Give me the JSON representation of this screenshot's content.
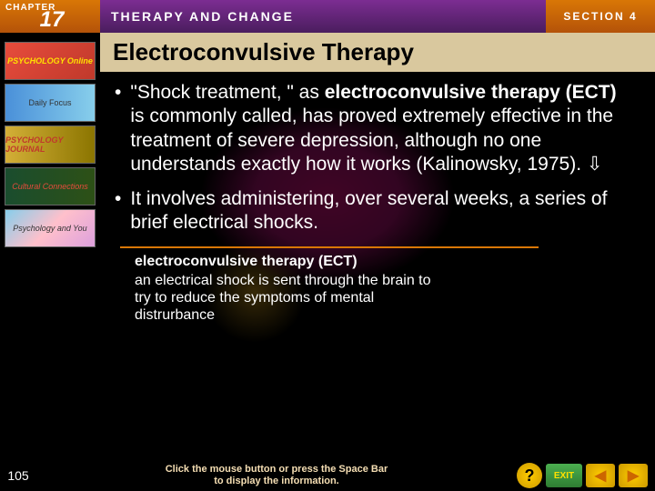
{
  "header": {
    "chapter_label": "CHAPTER",
    "chapter_num": "17",
    "title": "THERAPY AND CHANGE",
    "section": "SECTION 4"
  },
  "sidebar": {
    "items": [
      {
        "label": "PSYCHOLOGY Online"
      },
      {
        "label": "Daily Focus"
      },
      {
        "label": "PSYCHOLOGY JOURNAL"
      },
      {
        "label": "Cultural Connections"
      },
      {
        "label": "Psychology and You"
      }
    ]
  },
  "slide": {
    "title": "Electroconvulsive Therapy",
    "bullets": [
      {
        "pre": "\"Shock treatment, \" as ",
        "bold": "electroconvulsive therapy (ECT)",
        "post": " is commonly called, has proved extremely effective in the treatment of severe depression, although no one understands exactly how it works (Kalinowsky, 1975). ⇩"
      },
      {
        "pre": "It involves administering, over several weeks, a series of brief electrical shocks.",
        "bold": "",
        "post": ""
      }
    ],
    "definition": {
      "term": "electroconvulsive therapy (ECT)",
      "text": "an electrical shock is sent through the brain to try to reduce the symptoms of mental distrurbance"
    }
  },
  "footer": {
    "slide_num": "105",
    "hint_line1": "Click the mouse button or press the Space Bar",
    "hint_line2": "to display the information.",
    "help": "?",
    "exit": "EXIT",
    "prev": "◀",
    "next": "▶"
  },
  "colors": {
    "accent": "#d97706",
    "title_bg": "#d9c89e",
    "hint": "#f5deb3"
  }
}
